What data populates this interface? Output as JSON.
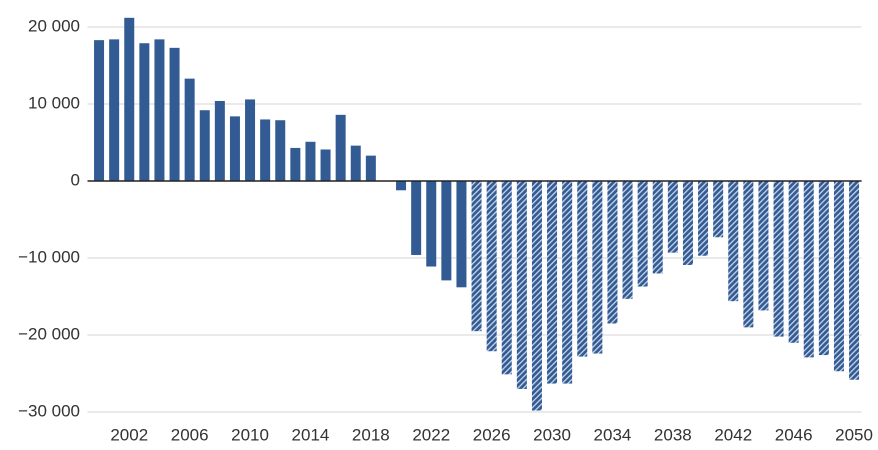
{
  "chart_data": {
    "type": "bar",
    "categories": [
      null,
      null,
      "2002",
      null,
      null,
      null,
      "2006",
      null,
      null,
      null,
      "2010",
      null,
      null,
      null,
      "2014",
      null,
      null,
      null,
      "2018",
      null,
      null,
      null,
      "2022",
      null,
      null,
      null,
      "2026",
      null,
      null,
      null,
      "2030",
      null,
      null,
      null,
      "2034",
      null,
      null,
      null,
      "2038",
      null,
      null,
      null,
      "2042",
      null,
      null,
      null,
      "2046",
      null,
      null,
      null,
      "2050"
    ],
    "values": [
      18300,
      18400,
      21200,
      17900,
      18400,
      17300,
      13300,
      9200,
      10400,
      8400,
      10600,
      8000,
      7900,
      4300,
      5100,
      4100,
      8600,
      4600,
      3300,
      0,
      -1200,
      -9600,
      -11100,
      -12900,
      -13800,
      -19500,
      -22100,
      -25100,
      -27000,
      -29800,
      -26300,
      -26300,
      -22800,
      -22400,
      -18500,
      -15300,
      -13700,
      -12000,
      -9300,
      -10900,
      -9700,
      -7300,
      -15600,
      -19000,
      -16800,
      -20200,
      -21000,
      -22900,
      -22600,
      -24700,
      -25800
    ],
    "color": "#325b94",
    "hatched_from_index": 25,
    "ylim": [
      -31500,
      21500
    ],
    "yticks": [
      {
        "value": -30000,
        "label": "−30 000"
      },
      {
        "value": -20000,
        "label": "−20 000"
      },
      {
        "value": -10000,
        "label": "−10 000"
      },
      0,
      {
        "value": 10000,
        "label": "10 000"
      },
      {
        "value": 20000,
        "label": "20 000"
      }
    ],
    "grid": true
  }
}
